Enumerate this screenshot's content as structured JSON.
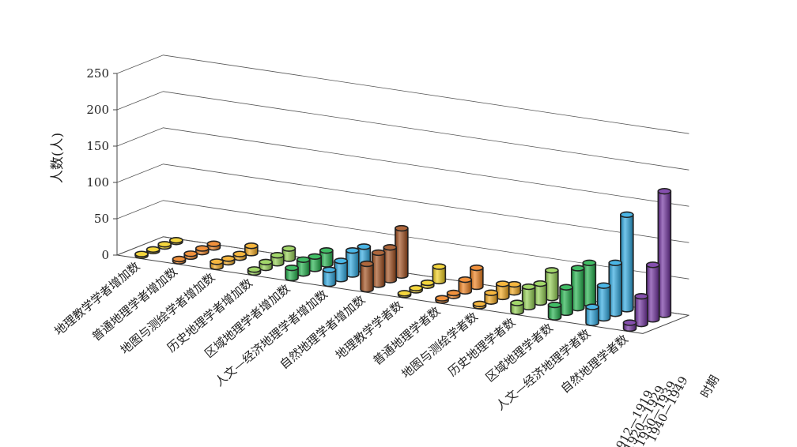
{
  "chart_data": {
    "type": "bar",
    "style": "3d-cylinder",
    "title": "",
    "ylabel": "人数(人)",
    "depth_axis_label": "时期",
    "ylim": [
      0,
      250
    ],
    "y_ticks": [
      0,
      50,
      100,
      150,
      200,
      250
    ],
    "categories": [
      "地理教学学者增加数",
      "普通地理学者增加数",
      "地图与测绘学者增加数",
      "历史地理学者增加数",
      "区域地理学者增加数",
      "人文—经济地理学者增加数",
      "自然地理学者增加数",
      "地理教学学者数",
      "普通地理学者数",
      "地图与测绘学者数",
      "历史地理学者数",
      "区域地理学者数",
      "人文—经济地理学者数",
      "自然地理学者数"
    ],
    "series": [
      {
        "name": "1912—1919",
        "values": [
          2,
          3,
          7,
          4,
          14,
          19,
          35,
          2,
          3,
          3,
          12,
          17,
          22,
          8
        ]
      },
      {
        "name": "1920—1929",
        "values": [
          1,
          4,
          5,
          8,
          19,
          25,
          44,
          3,
          4,
          12,
          28,
          35,
          45,
          38
        ]
      },
      {
        "name": "1930—1939",
        "values": [
          3,
          5,
          5,
          11,
          17,
          33,
          45,
          4,
          16,
          18,
          26,
          55,
          70,
          75
        ]
      },
      {
        "name": "1940—1949",
        "values": [
          2,
          5,
          10,
          14,
          19,
          32,
          65,
          20,
          26,
          11,
          38,
          56,
          130,
          170
        ]
      }
    ],
    "category_colors": [
      "#f2cf1b",
      "#ee7e1a",
      "#f4a91c",
      "#92d050",
      "#1fb14a",
      "#2aa8e0",
      "#a14c1a",
      "#f2cf1b",
      "#ee7e1a",
      "#f4a91c",
      "#92d050",
      "#1fb14a",
      "#2aa8e0",
      "#7030a0"
    ],
    "gridlines": true,
    "legend": "none"
  }
}
